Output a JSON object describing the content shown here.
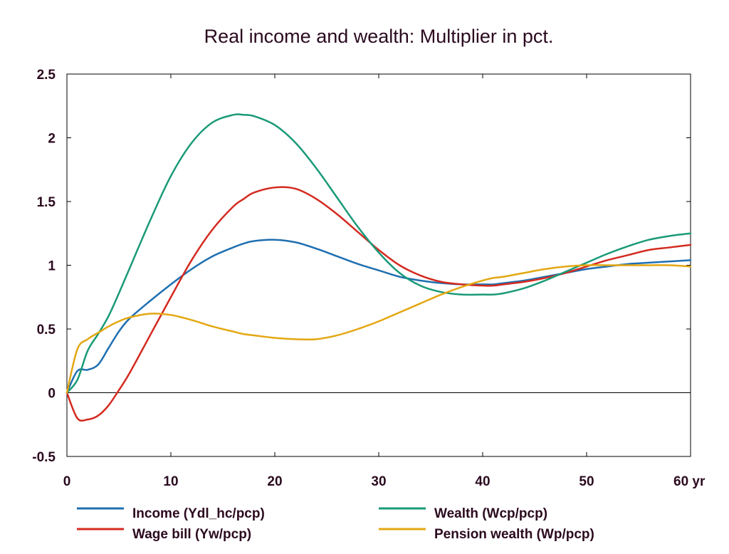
{
  "chart_data": {
    "type": "line",
    "title": "Real income and wealth: Multiplier in pct.",
    "xlabel": "",
    "ylabel": "",
    "x_unit_label": "yr",
    "xlim": [
      0,
      60
    ],
    "ylim": [
      -0.5,
      2.5
    ],
    "xticks": [
      0,
      10,
      20,
      30,
      40,
      50,
      60
    ],
    "xtick_labels": [
      "0",
      "10",
      "20",
      "30",
      "40",
      "50",
      "60 yr"
    ],
    "yticks": [
      -0.5,
      0,
      0.5,
      1,
      1.5,
      2,
      2.5
    ],
    "ytick_labels": [
      "-0.5",
      "0",
      "0.5",
      "1",
      "1.5",
      "2",
      "2.5"
    ],
    "zero_line": true,
    "grid": false,
    "legend_position": "bottom",
    "x": [
      0,
      1,
      2,
      3,
      4,
      5,
      6,
      8,
      10,
      12,
      14,
      16,
      17,
      18,
      20,
      22,
      24,
      26,
      28,
      30,
      32,
      34,
      36,
      38,
      40,
      41,
      42,
      44,
      46,
      48,
      50,
      52,
      54,
      56,
      58,
      60
    ],
    "series": [
      {
        "name": "Income (Ydl_hc/pcp)",
        "color": "#1f6fb0",
        "values": [
          0,
          0.17,
          0.18,
          0.22,
          0.35,
          0.48,
          0.58,
          0.72,
          0.85,
          0.97,
          1.07,
          1.14,
          1.17,
          1.19,
          1.2,
          1.18,
          1.13,
          1.07,
          1.01,
          0.96,
          0.91,
          0.88,
          0.86,
          0.85,
          0.85,
          0.85,
          0.86,
          0.88,
          0.91,
          0.94,
          0.97,
          0.99,
          1.01,
          1.02,
          1.03,
          1.04
        ]
      },
      {
        "name": "Wage bill (Yw/pcp)",
        "color": "#d42a20",
        "values": [
          0,
          -0.2,
          -0.21,
          -0.18,
          -0.1,
          0.02,
          0.15,
          0.45,
          0.75,
          1.04,
          1.28,
          1.46,
          1.52,
          1.57,
          1.61,
          1.6,
          1.52,
          1.4,
          1.26,
          1.12,
          1.0,
          0.92,
          0.87,
          0.85,
          0.84,
          0.84,
          0.85,
          0.87,
          0.9,
          0.94,
          0.99,
          1.04,
          1.08,
          1.12,
          1.14,
          1.16
        ]
      },
      {
        "name": "Wealth (Wcp/pcp)",
        "color": "#1a9a78",
        "values": [
          0,
          0.1,
          0.33,
          0.46,
          0.6,
          0.78,
          0.97,
          1.35,
          1.7,
          1.96,
          2.12,
          2.18,
          2.18,
          2.17,
          2.1,
          1.96,
          1.76,
          1.53,
          1.3,
          1.1,
          0.94,
          0.84,
          0.79,
          0.77,
          0.77,
          0.77,
          0.78,
          0.82,
          0.88,
          0.95,
          1.02,
          1.09,
          1.15,
          1.2,
          1.23,
          1.25
        ]
      },
      {
        "name": "Pension wealth (Wp/pcp)",
        "color": "#e3a712",
        "values": [
          0,
          0.34,
          0.42,
          0.47,
          0.52,
          0.56,
          0.59,
          0.62,
          0.61,
          0.57,
          0.52,
          0.48,
          0.46,
          0.45,
          0.43,
          0.42,
          0.42,
          0.45,
          0.5,
          0.56,
          0.63,
          0.7,
          0.77,
          0.83,
          0.88,
          0.9,
          0.91,
          0.94,
          0.97,
          0.99,
          1.0,
          1.0,
          1.0,
          1.0,
          1.0,
          0.99
        ]
      }
    ]
  }
}
